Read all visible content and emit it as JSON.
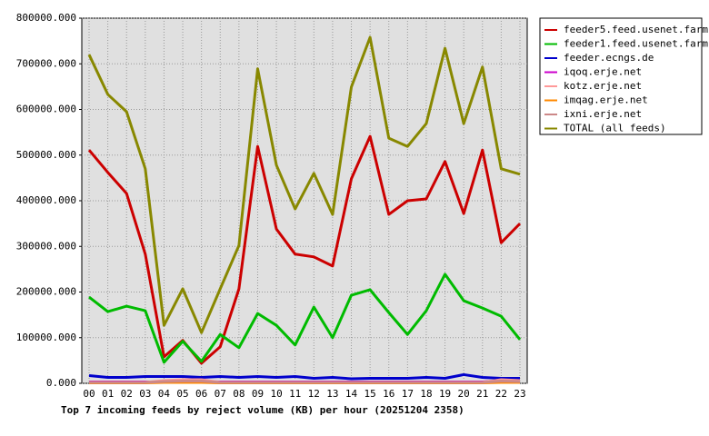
{
  "chart_data": {
    "type": "line",
    "title": "Top 7 incoming feeds by reject volume (KB) per hour (20251204 2358)",
    "categories": [
      "00",
      "01",
      "02",
      "03",
      "04",
      "05",
      "06",
      "07",
      "08",
      "09",
      "10",
      "11",
      "12",
      "13",
      "14",
      "15",
      "16",
      "17",
      "18",
      "19",
      "20",
      "21",
      "22",
      "23"
    ],
    "series": [
      {
        "name": "feeder5.feed.usenet.farm",
        "color": "#cc0000",
        "values": [
          511000,
          462000,
          416000,
          283000,
          58000,
          94000,
          44000,
          80000,
          207000,
          519000,
          338000,
          283000,
          277000,
          257000,
          448000,
          541000,
          370000,
          400000,
          404000,
          486000,
          372000,
          511000,
          308000,
          350000
        ]
      },
      {
        "name": "feeder1.feed.usenet.farm",
        "color": "#00bb00",
        "values": [
          189000,
          157000,
          169000,
          159000,
          46000,
          92000,
          48000,
          107000,
          78000,
          153000,
          127000,
          84000,
          167000,
          100000,
          193000,
          205000,
          155000,
          107000,
          159000,
          239000,
          181000,
          165000,
          147000,
          96000
        ]
      },
      {
        "name": "feeder.ecngs.de",
        "color": "#0000cc",
        "values": [
          17000,
          13000,
          13000,
          15000,
          15000,
          15000,
          13000,
          15000,
          13000,
          15000,
          13000,
          15000,
          11000,
          13000,
          10000,
          11000,
          11000,
          11000,
          13000,
          11000,
          19000,
          13000,
          11000,
          11000
        ]
      },
      {
        "name": "iqoq.erje.net",
        "color": "#cc00cc",
        "values": [
          3000,
          3000,
          3000,
          3000,
          3000,
          4000,
          4000,
          3000,
          3000,
          3000,
          3000,
          3000,
          3000,
          3000,
          3000,
          3000,
          3000,
          3000,
          3000,
          3000,
          3000,
          3000,
          6000,
          5000
        ]
      },
      {
        "name": "kotz.erje.net",
        "color": "#ff9999",
        "values": [
          2000,
          2000,
          2000,
          2000,
          6000,
          8000,
          8000,
          2000,
          2000,
          2000,
          2000,
          2000,
          2000,
          2000,
          2000,
          2000,
          2000,
          2000,
          2000,
          2000,
          2000,
          2000,
          8000,
          6000
        ]
      },
      {
        "name": "imqag.erje.net",
        "color": "#ff8800",
        "values": [
          1000,
          1000,
          1000,
          1000,
          2000,
          2000,
          2000,
          1000,
          1000,
          1000,
          1000,
          1000,
          1000,
          1000,
          1000,
          1000,
          1000,
          1000,
          1000,
          1000,
          1000,
          1000,
          2000,
          2000
        ]
      },
      {
        "name": "ixni.erje.net",
        "color": "#cc8888",
        "values": [
          2000,
          2000,
          2000,
          2000,
          4000,
          5000,
          5000,
          2000,
          2000,
          2000,
          2000,
          2000,
          2000,
          2000,
          2000,
          2000,
          2000,
          2000,
          2000,
          2000,
          2000,
          2000,
          5000,
          4000
        ]
      },
      {
        "name": "TOTAL (all feeds)",
        "color": "#888800",
        "values": [
          720000,
          633000,
          595000,
          470000,
          127000,
          207000,
          111000,
          207000,
          302000,
          689000,
          478000,
          382000,
          460000,
          370000,
          649000,
          758000,
          537000,
          519000,
          569000,
          734000,
          569000,
          693000,
          470000,
          458000
        ]
      }
    ],
    "ylim": [
      0,
      800000
    ],
    "yticks": [
      {
        "value": 0,
        "label": "0.000"
      },
      {
        "value": 100000,
        "label": "100000.000"
      },
      {
        "value": 200000,
        "label": "200000.000"
      },
      {
        "value": 300000,
        "label": "300000.000"
      },
      {
        "value": 400000,
        "label": "400000.000"
      },
      {
        "value": 500000,
        "label": "500000.000"
      },
      {
        "value": 600000,
        "label": "600000.000"
      },
      {
        "value": 700000,
        "label": "700000.000"
      },
      {
        "value": 800000,
        "label": "800000.000"
      }
    ],
    "grid": true
  }
}
